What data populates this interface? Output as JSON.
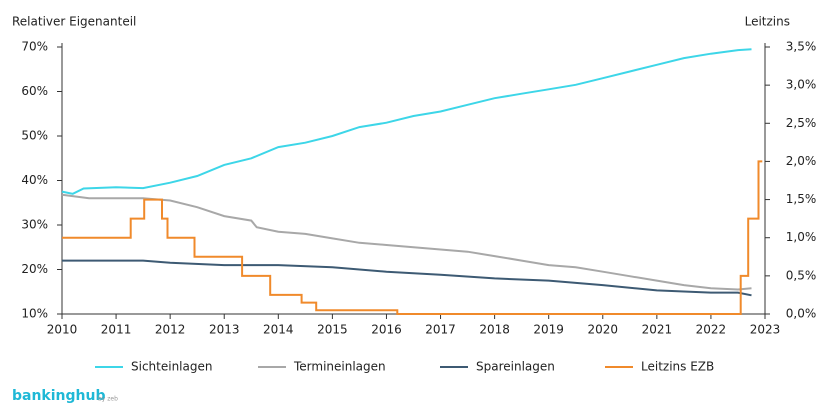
{
  "chart_data": {
    "type": "line",
    "y_label": "Relativer Eigenanteil",
    "y2_label": "Leitzins",
    "xlim": [
      2010,
      2023
    ],
    "xticks": [
      2010,
      2011,
      2012,
      2013,
      2014,
      2015,
      2016,
      2017,
      2018,
      2019,
      2020,
      2021,
      2022,
      2023
    ],
    "ylim": [
      10,
      70
    ],
    "yticks": [
      {
        "value": 10,
        "label": "10%"
      },
      {
        "value": 20,
        "label": "20%"
      },
      {
        "value": 30,
        "label": "30%"
      },
      {
        "value": 40,
        "label": "40%"
      },
      {
        "value": 50,
        "label": "50%"
      },
      {
        "value": 60,
        "label": "60%"
      },
      {
        "value": 70,
        "label": "70%"
      }
    ],
    "y2lim": [
      0,
      3.5
    ],
    "y2ticks": [
      {
        "value": 0,
        "label": "0,0%"
      },
      {
        "value": 0.5,
        "label": "0,5%"
      },
      {
        "value": 1,
        "label": "1,0%"
      },
      {
        "value": 1.5,
        "label": "1,5%"
      },
      {
        "value": 2,
        "label": "2,0%"
      },
      {
        "value": 2.5,
        "label": "2,5%"
      },
      {
        "value": 3,
        "label": "3,0%"
      },
      {
        "value": 3.5,
        "label": "3,5%"
      }
    ],
    "grid": false,
    "legend": "bottom",
    "series": [
      {
        "name": "Sichteinlagen",
        "color": "#3dd6e8",
        "x": [
          2010,
          2010.2,
          2010.4,
          2011,
          2011.5,
          2012,
          2012.5,
          2013,
          2013.5,
          2014,
          2014.5,
          2015,
          2015.5,
          2016,
          2016.5,
          2017,
          2017.5,
          2018,
          2018.5,
          2019,
          2019.5,
          2020,
          2020.5,
          2021,
          2021.5,
          2022,
          2022.5,
          2022.75
        ],
        "values": [
          37.5,
          37,
          38.2,
          38.5,
          38.3,
          39.5,
          41,
          43.5,
          45,
          47.5,
          48.5,
          50,
          52,
          53,
          54.5,
          55.5,
          57,
          58.5,
          59.5,
          60.5,
          61.5,
          63,
          64.5,
          66,
          67.5,
          68.5,
          69.3,
          69.5
        ]
      },
      {
        "name": "Termineinlagen",
        "color": "#a8a8a8",
        "x": [
          2010,
          2010.5,
          2011,
          2011.5,
          2012,
          2012.5,
          2013,
          2013.5,
          2013.6,
          2014,
          2014.5,
          2015,
          2015.5,
          2016,
          2016.5,
          2017,
          2017.5,
          2018,
          2018.5,
          2019,
          2019.5,
          2020,
          2020.5,
          2021,
          2021.5,
          2022,
          2022.5,
          2022.75
        ],
        "values": [
          36.8,
          36,
          36,
          36,
          35.5,
          34,
          32,
          31,
          29.5,
          28.5,
          28,
          27,
          26,
          25.5,
          25,
          24.5,
          24,
          23,
          22,
          21,
          20.5,
          19.5,
          18.5,
          17.5,
          16.5,
          15.8,
          15.5,
          15.8
        ]
      },
      {
        "name": "Spareinlagen",
        "color": "#3d5a73",
        "x": [
          2010,
          2011,
          2011.5,
          2012,
          2013,
          2013.5,
          2014,
          2015,
          2016,
          2017,
          2018,
          2019,
          2020,
          2021,
          2022,
          2022.5,
          2022.75
        ],
        "values": [
          22,
          22,
          22,
          21.5,
          21,
          21,
          21,
          20.5,
          19.5,
          18.8,
          18,
          17.5,
          16.5,
          15.3,
          14.8,
          14.8,
          14.2
        ]
      },
      {
        "name": "Leitzins EZB",
        "color": "#f08a2b",
        "axis": "y2",
        "x": [
          2010,
          2011.27,
          2011.27,
          2011.52,
          2011.52,
          2011.85,
          2011.85,
          2011.95,
          2011.95,
          2012.45,
          2012.45,
          2013.33,
          2013.33,
          2013.85,
          2013.85,
          2014.43,
          2014.43,
          2014.7,
          2014.7,
          2016.2,
          2016.2,
          2022.55,
          2022.55,
          2022.69,
          2022.69,
          2022.88,
          2022.88,
          2022.95
        ],
        "values": [
          1,
          1,
          1.25,
          1.25,
          1.5,
          1.5,
          1.25,
          1.25,
          1,
          1,
          0.75,
          0.75,
          0.5,
          0.5,
          0.25,
          0.25,
          0.15,
          0.15,
          0.05,
          0.05,
          0,
          0,
          0.5,
          0.5,
          1.25,
          1.25,
          2,
          2
        ]
      }
    ]
  },
  "brand": {
    "name": "bankinghub",
    "suffix": "by zeb"
  }
}
